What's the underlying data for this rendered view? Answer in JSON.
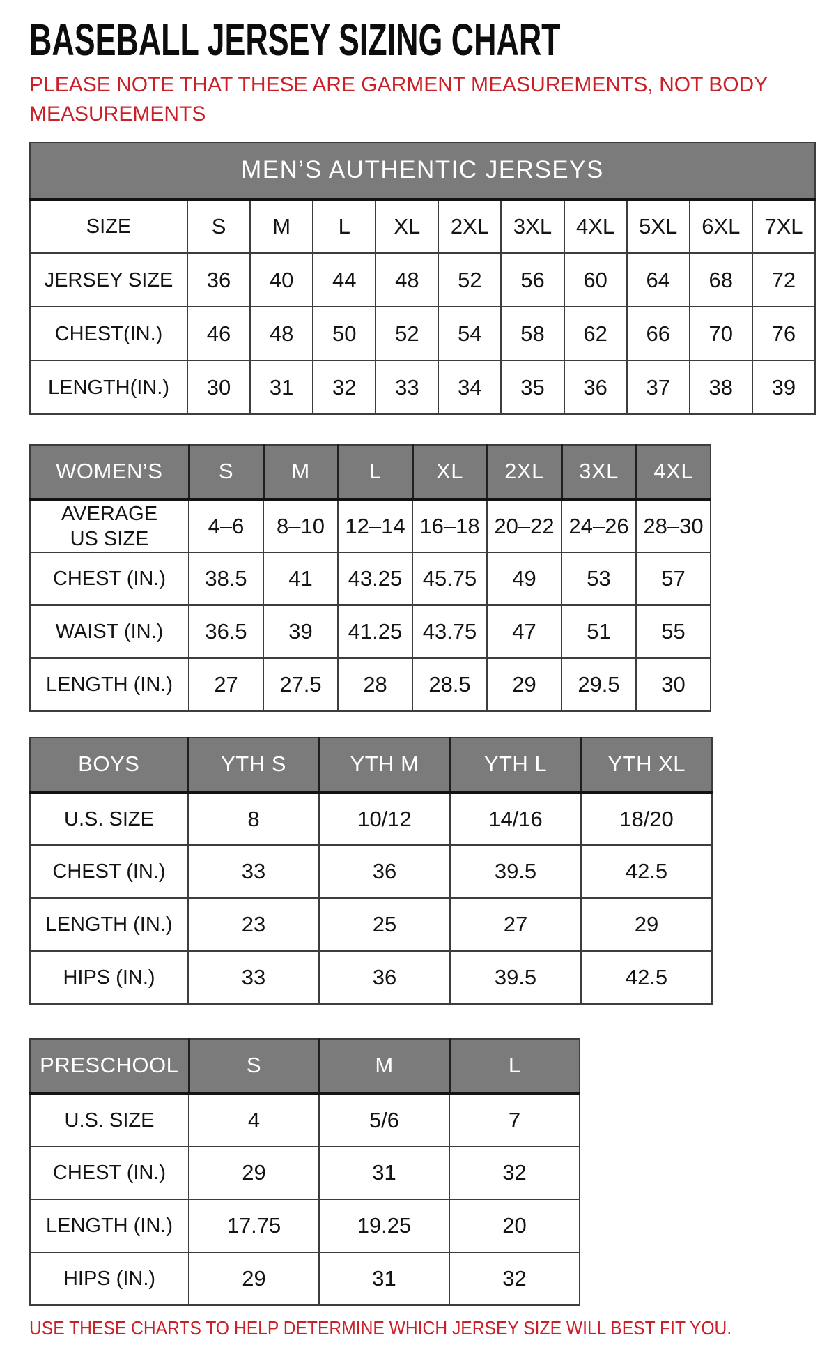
{
  "page_title": "BASEBALL JERSEY SIZING CHART",
  "note": "PLEASE NOTE THAT THESE ARE GARMENT MEASUREMENTS, NOT BODY MEASUREMENTS",
  "footer": "USE THESE CHARTS TO HELP DETERMINE WHICH JERSEY SIZE WILL BEST FIT YOU.",
  "colors": {
    "accent_red": "#cb2027",
    "header_gray": "#7b7b7b",
    "border_dark": "#3d3d3d",
    "heavy_rule": "#131313",
    "title_black": "#0d0d0d"
  },
  "tables": [
    {
      "id": "mens",
      "banner": "MEN’S AUTHENTIC JERSEYS",
      "rows": [
        {
          "label": "SIZE",
          "values": [
            "S",
            "M",
            "L",
            "XL",
            "2XL",
            "3XL",
            "4XL",
            "5XL",
            "6XL",
            "7XL"
          ]
        },
        {
          "label": "JERSEY SIZE",
          "values": [
            "36",
            "40",
            "44",
            "48",
            "52",
            "56",
            "60",
            "64",
            "68",
            "72"
          ]
        },
        {
          "label": "CHEST(IN.)",
          "values": [
            "46",
            "48",
            "50",
            "52",
            "54",
            "58",
            "62",
            "66",
            "70",
            "76"
          ]
        },
        {
          "label": "LENGTH(IN.)",
          "values": [
            "30",
            "31",
            "32",
            "33",
            "34",
            "35",
            "36",
            "37",
            "38",
            "39"
          ]
        }
      ]
    },
    {
      "id": "womens",
      "header_row": {
        "label": "WOMEN’S",
        "values": [
          "S",
          "M",
          "L",
          "XL",
          "2XL",
          "3XL",
          "4XL"
        ]
      },
      "rows": [
        {
          "label": "AVERAGE\nUS SIZE",
          "values": [
            "4–6",
            "8–10",
            "12–14",
            "16–18",
            "20–22",
            "24–26",
            "28–30"
          ]
        },
        {
          "label": "CHEST (IN.)",
          "values": [
            "38.5",
            "41",
            "43.25",
            "45.75",
            "49",
            "53",
            "57"
          ]
        },
        {
          "label": "WAIST (IN.)",
          "values": [
            "36.5",
            "39",
            "41.25",
            "43.75",
            "47",
            "51",
            "55"
          ]
        },
        {
          "label": "LENGTH (IN.)",
          "values": [
            "27",
            "27.5",
            "28",
            "28.5",
            "29",
            "29.5",
            "30"
          ]
        }
      ]
    },
    {
      "id": "boys",
      "header_row": {
        "label": "BOYS",
        "values": [
          "YTH S",
          "YTH M",
          "YTH L",
          "YTH XL"
        ]
      },
      "rows": [
        {
          "label": "U.S. SIZE",
          "values": [
            "8",
            "10/12",
            "14/16",
            "18/20"
          ]
        },
        {
          "label": "CHEST (IN.)",
          "values": [
            "33",
            "36",
            "39.5",
            "42.5"
          ]
        },
        {
          "label": "LENGTH (IN.)",
          "values": [
            "23",
            "25",
            "27",
            "29"
          ]
        },
        {
          "label": "HIPS (IN.)",
          "values": [
            "33",
            "36",
            "39.5",
            "42.5"
          ]
        }
      ]
    },
    {
      "id": "preschool",
      "header_row": {
        "label": "PRESCHOOL",
        "values": [
          "S",
          "M",
          "L"
        ]
      },
      "rows": [
        {
          "label": "U.S. SIZE",
          "values": [
            "4",
            "5/6",
            "7"
          ]
        },
        {
          "label": "CHEST (IN.)",
          "values": [
            "29",
            "31",
            "32"
          ]
        },
        {
          "label": "LENGTH (IN.)",
          "values": [
            "17.75",
            "19.25",
            "20"
          ]
        },
        {
          "label": "HIPS (IN.)",
          "values": [
            "29",
            "31",
            "32"
          ]
        }
      ]
    }
  ]
}
